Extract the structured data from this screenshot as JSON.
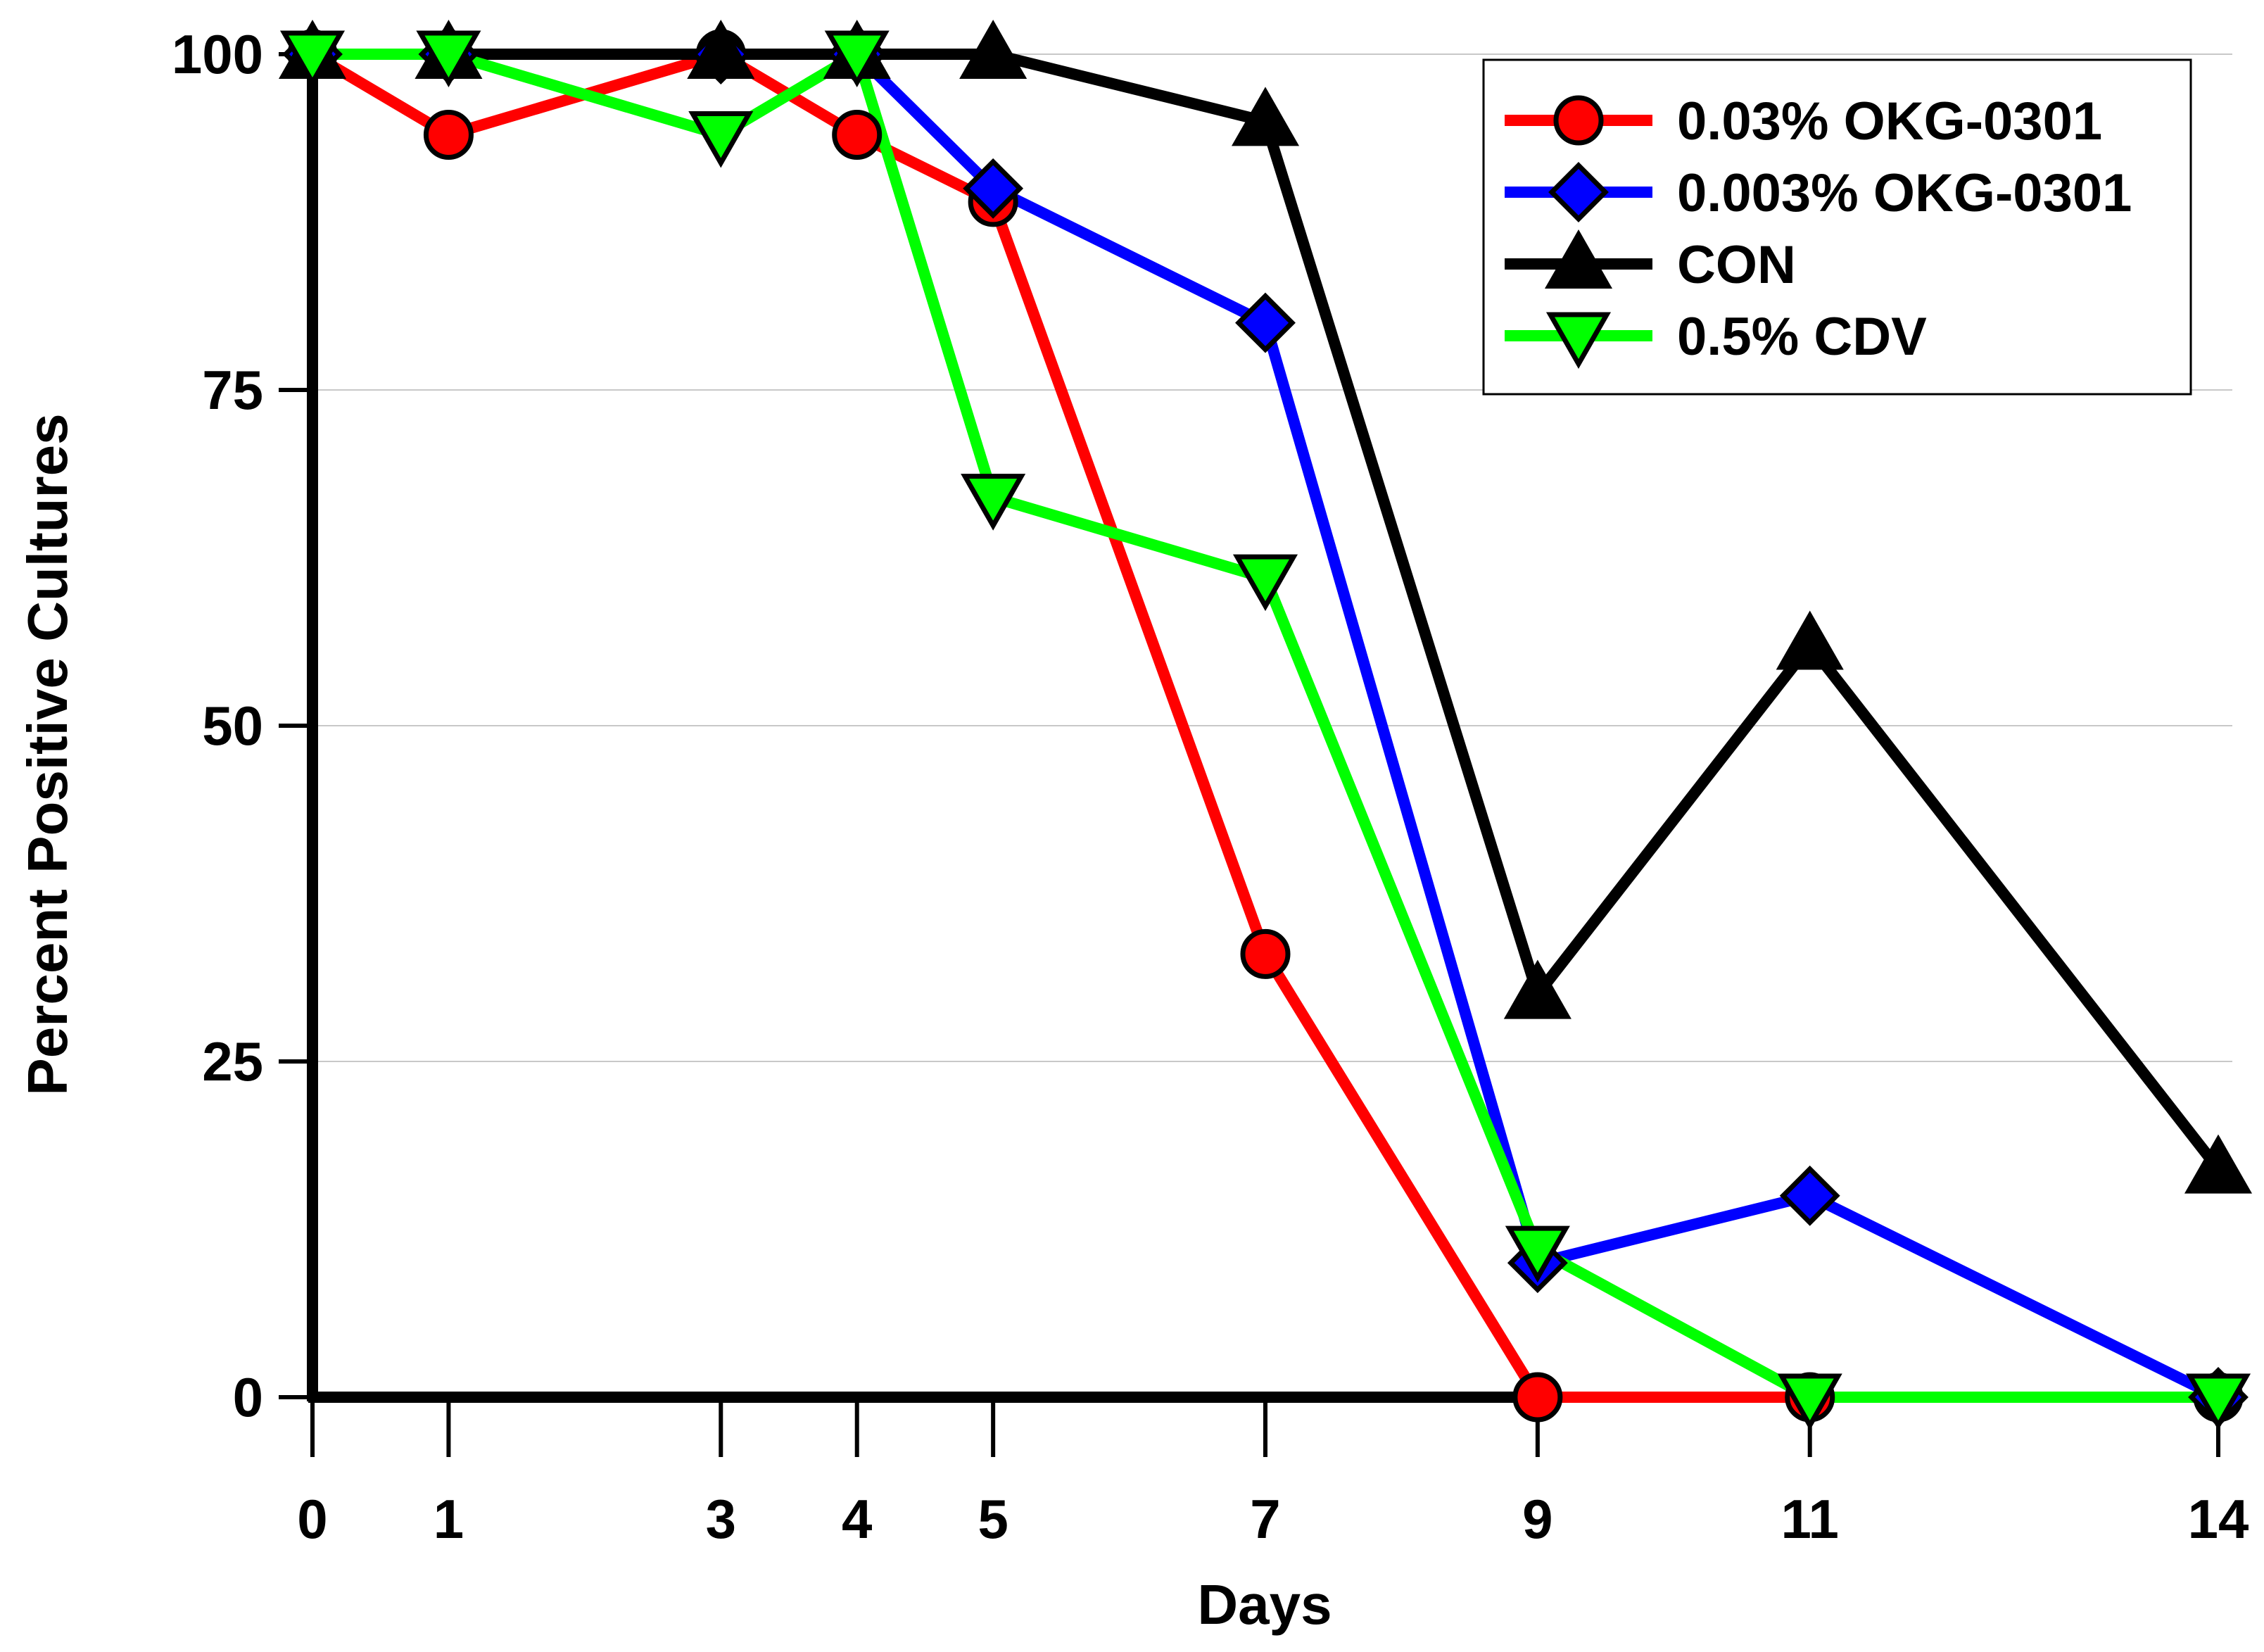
{
  "chart_data": {
    "type": "line",
    "title": "",
    "xlabel": "Days",
    "ylabel": "Percent Positive Cultures",
    "x": [
      0,
      1,
      3,
      4,
      5,
      7,
      9,
      11,
      14
    ],
    "xticks": [
      "0",
      "1",
      "3",
      "4",
      "5",
      "7",
      "9",
      "11",
      "14"
    ],
    "yticks": [
      "0",
      "25",
      "50",
      "75",
      "100"
    ],
    "xlim": [
      0,
      14
    ],
    "ylim": [
      0,
      100
    ],
    "grid": "horizontal",
    "legend_position": "top-right",
    "series": [
      {
        "name": "0.03% OKG-0301",
        "color": "#ff0000",
        "marker": "circle",
        "marker_color": "#ff0000",
        "values": [
          100,
          94,
          100,
          94,
          89,
          33,
          0,
          0,
          0
        ]
      },
      {
        "name": "0.003% OKG-0301",
        "color": "#0000ff",
        "marker": "diamond",
        "marker_color": "#0000ff",
        "values": [
          100,
          100,
          100,
          100,
          90,
          80,
          10,
          15,
          0
        ]
      },
      {
        "name": "CON",
        "color": "#000000",
        "marker": "triangle-up",
        "marker_color": "#000000",
        "values": [
          100,
          100,
          100,
          100,
          100,
          95,
          30,
          56,
          17
        ]
      },
      {
        "name": "0.5% CDV",
        "color": "#00ff00",
        "marker": "triangle-down",
        "marker_color": "#00ff00",
        "values": [
          100,
          100,
          94,
          100,
          67,
          61,
          11,
          0,
          0
        ]
      }
    ]
  }
}
